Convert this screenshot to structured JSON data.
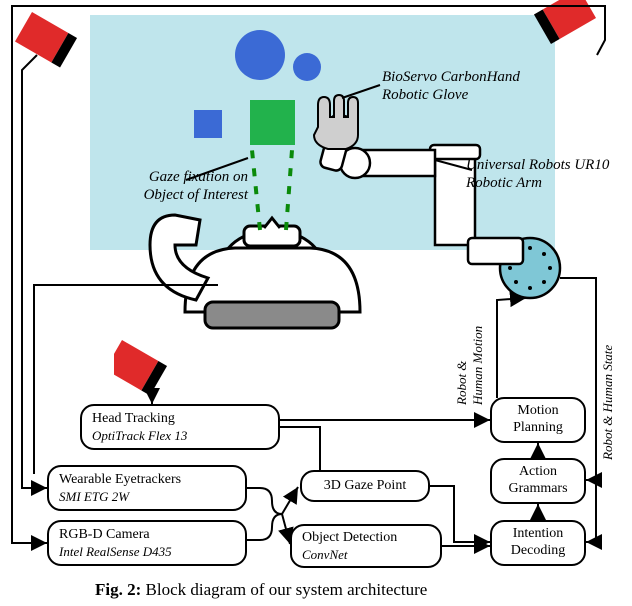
{
  "scene": {
    "table_color": "#bfe5ec",
    "circle_big_color": "#3b6ad5",
    "circle_small_color": "#3b6ad5",
    "circle_dots_color": "#7fc7d6",
    "square_blue_color": "#3b6ad5",
    "square_green_color": "#22b24c",
    "camera_red": "#e02a2a",
    "camera_black": "#000000",
    "robot_fill": "#ffffff"
  },
  "labels": {
    "glove": "BioServo CarbonHand\nRobotic Glove",
    "arm": "Universal Robots UR10\nRobotic Arm",
    "gaze": "Gaze fixation on\nObject of Interest",
    "robot_human_motion": "Robot &\nHuman Motion",
    "robot_human_state": "Robot & Human State"
  },
  "boxes": {
    "head_tracking": {
      "title": "Head Tracking",
      "sub": "OptiTrack Flex 13"
    },
    "eyetrackers": {
      "title": "Wearable Eyetrackers",
      "sub": "SMI ETG 2W"
    },
    "rgbd": {
      "title": "RGB-D Camera",
      "sub": "Intel RealSense D435"
    },
    "gaze_point": {
      "title": "3D Gaze Point"
    },
    "obj_detect": {
      "title": "Object Detection",
      "sub": "ConvNet"
    },
    "motion": {
      "title": "Motion\nPlanning"
    },
    "grammars": {
      "title": "Action\nGrammars"
    },
    "intention": {
      "title": "Intention\nDecoding"
    }
  },
  "caption": "Fig. 2: Block diagram of our system architecture"
}
